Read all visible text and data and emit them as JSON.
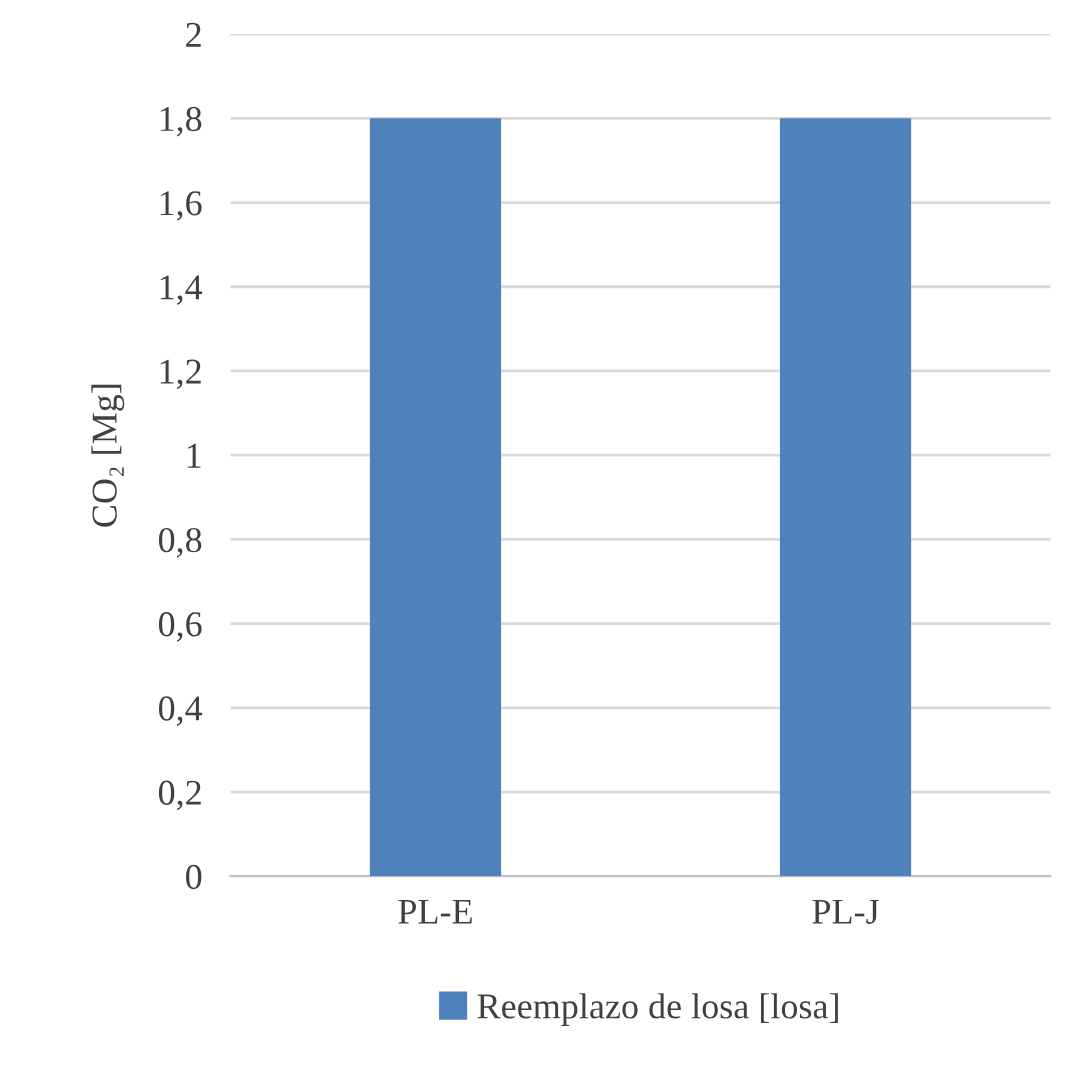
{
  "chart_data": {
    "type": "bar",
    "ylabel": "CO₂ [Mg]",
    "categories": [
      "PL-E",
      "PL-J"
    ],
    "series": [
      {
        "name": "Reemplazo de losa [losa]",
        "color": "#4f81bd",
        "values": [
          1.8,
          1.8
        ]
      }
    ],
    "ylim": [
      0,
      2
    ],
    "yticks": [
      0,
      {
        "value": 0.2,
        "label": "0,2"
      },
      {
        "value": 0.4,
        "label": "0,4"
      },
      {
        "value": 0.6,
        "label": "0,6"
      },
      {
        "value": 0.8,
        "label": "0,8"
      },
      1,
      {
        "value": 1.2,
        "label": "1,2"
      },
      {
        "value": 1.4,
        "label": "1,4"
      },
      {
        "value": 1.6,
        "label": "1,6"
      },
      {
        "value": 1.8,
        "label": "1,8"
      },
      2
    ],
    "grid": "y",
    "legend": "bottom"
  }
}
